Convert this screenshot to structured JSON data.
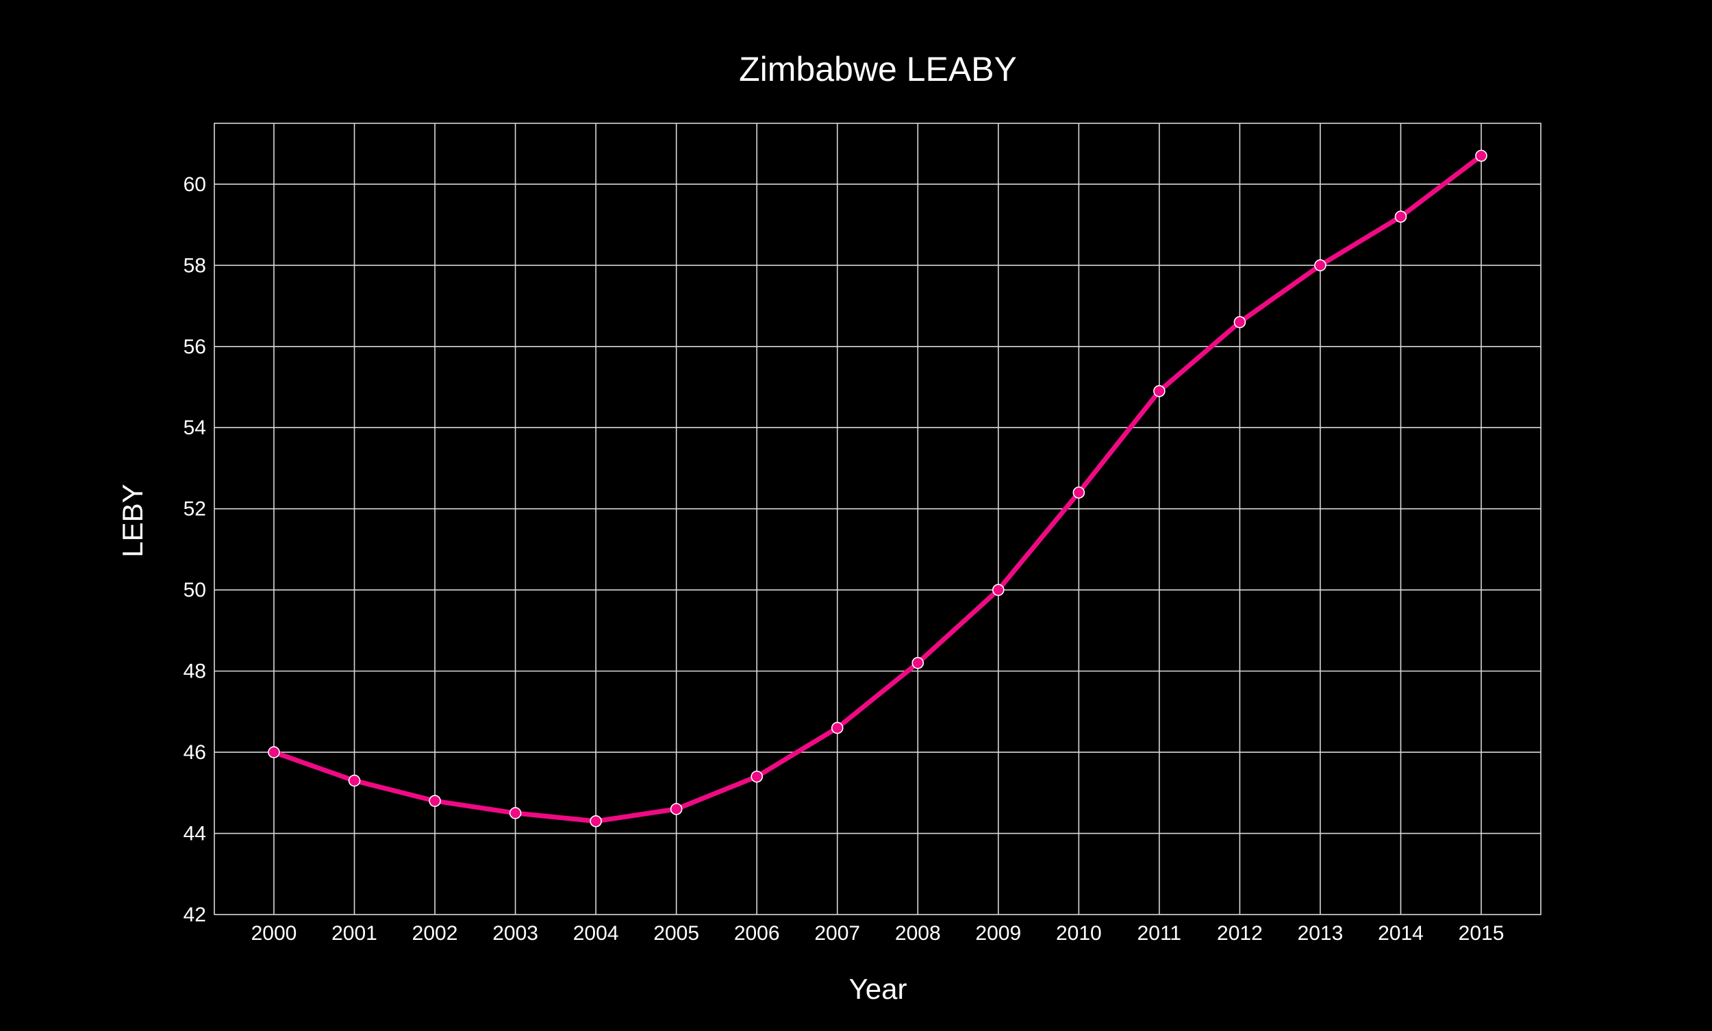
{
  "chart_data": {
    "type": "line",
    "title": "Zimbabwe LEABY",
    "xlabel": "Year",
    "ylabel": "LEBY",
    "categories": [
      "2000",
      "2001",
      "2002",
      "2003",
      "2004",
      "2005",
      "2006",
      "2007",
      "2008",
      "2009",
      "2010",
      "2011",
      "2012",
      "2013",
      "2014",
      "2015"
    ],
    "series": [
      {
        "values": [
          46.0,
          45.3,
          44.8,
          44.5,
          44.3,
          44.6,
          45.4,
          46.6,
          48.2,
          50.0,
          52.4,
          54.9,
          56.6,
          58.0,
          59.2,
          60.7
        ],
        "color": "#ef0a84"
      }
    ],
    "ylim": [
      42,
      61.5
    ],
    "yticks": [
      42,
      44,
      46,
      48,
      50,
      52,
      54,
      56,
      58,
      60
    ],
    "grid": true,
    "legend": "none",
    "background": "#000000",
    "grid_color": "#d9d9d9",
    "text_color": "#ffffff"
  }
}
